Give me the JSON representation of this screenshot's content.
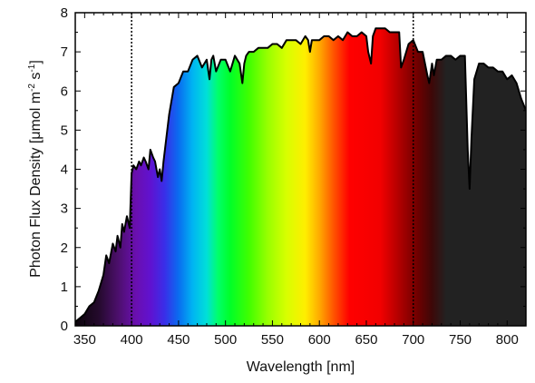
{
  "chart_data": {
    "type": "area",
    "title": "",
    "xlabel": "Wavelength [nm]",
    "ylabel": {
      "prefix": "Photon Flux Density [μmol m",
      "sup1": "-2",
      "mid": " s",
      "sup2": "-1",
      "suffix": "]"
    },
    "xlim": [
      340,
      820
    ],
    "ylim": [
      0,
      8
    ],
    "x_ticks": [
      350,
      400,
      450,
      500,
      550,
      600,
      650,
      700,
      750,
      800
    ],
    "y_ticks": [
      0,
      1,
      2,
      3,
      4,
      5,
      6,
      7,
      8
    ],
    "x_tick_labels": [
      "350",
      "400",
      "450",
      "500",
      "550",
      "600",
      "650",
      "700",
      "750",
      "800"
    ],
    "y_tick_labels": [
      "0",
      "1",
      "2",
      "3",
      "4",
      "5",
      "6",
      "7",
      "8"
    ],
    "reference_lines_x": [
      400,
      700
    ],
    "series": [
      {
        "x": [
          340,
          345,
          350,
          355,
          360,
          365,
          370,
          373,
          376,
          380,
          383,
          385,
          388,
          390,
          392,
          395,
          398,
          400,
          402,
          405,
          408,
          410,
          413,
          415,
          418,
          420,
          423,
          425,
          428,
          430,
          432,
          434,
          436,
          440,
          445,
          450,
          455,
          460,
          465,
          470,
          475,
          480,
          483,
          485,
          487,
          490,
          495,
          500,
          505,
          510,
          515,
          518,
          520,
          522,
          525,
          530,
          535,
          540,
          545,
          550,
          555,
          560,
          565,
          570,
          575,
          580,
          585,
          588,
          590,
          592,
          595,
          600,
          605,
          610,
          615,
          620,
          625,
          630,
          635,
          640,
          645,
          650,
          652,
          655,
          657,
          660,
          665,
          670,
          675,
          680,
          685,
          687,
          690,
          695,
          700,
          705,
          710,
          715,
          717,
          720,
          722,
          725,
          730,
          735,
          740,
          745,
          750,
          755,
          758,
          760,
          762,
          765,
          770,
          775,
          780,
          785,
          790,
          795,
          800,
          805,
          810,
          815,
          820
        ],
        "y": [
          0.1,
          0.2,
          0.3,
          0.5,
          0.6,
          0.9,
          1.3,
          1.8,
          1.6,
          2.1,
          1.9,
          2.3,
          2.0,
          2.6,
          2.4,
          2.8,
          2.5,
          3.9,
          4.1,
          4.0,
          4.2,
          4.1,
          4.3,
          4.2,
          4.0,
          4.5,
          4.3,
          4.2,
          3.8,
          4.0,
          3.7,
          4.2,
          4.6,
          5.4,
          6.1,
          6.2,
          6.5,
          6.5,
          6.8,
          6.9,
          6.6,
          6.8,
          6.3,
          6.8,
          6.9,
          6.5,
          6.8,
          6.8,
          6.5,
          6.9,
          6.7,
          6.2,
          6.7,
          6.9,
          7.0,
          7.0,
          7.1,
          7.1,
          7.1,
          7.2,
          7.2,
          7.1,
          7.3,
          7.3,
          7.3,
          7.2,
          7.4,
          7.3,
          7.0,
          7.3,
          7.3,
          7.3,
          7.4,
          7.4,
          7.3,
          7.4,
          7.3,
          7.5,
          7.4,
          7.4,
          7.5,
          7.4,
          7.0,
          6.7,
          7.4,
          7.6,
          7.6,
          7.6,
          7.5,
          7.5,
          7.5,
          6.6,
          6.8,
          7.2,
          7.3,
          7.0,
          7.0,
          6.4,
          6.2,
          6.7,
          6.4,
          6.8,
          6.8,
          6.9,
          6.9,
          6.8,
          6.9,
          6.9,
          4.5,
          3.5,
          4.8,
          6.3,
          6.7,
          6.7,
          6.6,
          6.6,
          6.5,
          6.5,
          6.3,
          6.4,
          6.2,
          5.8,
          5.5
        ]
      }
    ],
    "colors": {
      "line": "#000000",
      "reference_line": "#000000",
      "infrared_fill": "#222222",
      "spectrum_stops": [
        {
          "wl": 340,
          "color": "#0a030a"
        },
        {
          "wl": 365,
          "color": "#240a2c"
        },
        {
          "wl": 385,
          "color": "#4b0f6a"
        },
        {
          "wl": 405,
          "color": "#6a0fb0"
        },
        {
          "wl": 420,
          "color": "#6012d0"
        },
        {
          "wl": 435,
          "color": "#3a2ee8"
        },
        {
          "wl": 450,
          "color": "#0a6cf0"
        },
        {
          "wl": 465,
          "color": "#00b4f2"
        },
        {
          "wl": 480,
          "color": "#00e0d8"
        },
        {
          "wl": 492,
          "color": "#00ff6a"
        },
        {
          "wl": 505,
          "color": "#00ff28"
        },
        {
          "wl": 525,
          "color": "#40ff00"
        },
        {
          "wl": 545,
          "color": "#98ff00"
        },
        {
          "wl": 565,
          "color": "#d8ff00"
        },
        {
          "wl": 585,
          "color": "#ffee00"
        },
        {
          "wl": 600,
          "color": "#ffaa00"
        },
        {
          "wl": 615,
          "color": "#ff5500"
        },
        {
          "wl": 632,
          "color": "#ff0000"
        },
        {
          "wl": 665,
          "color": "#f20000"
        },
        {
          "wl": 685,
          "color": "#b00000"
        },
        {
          "wl": 705,
          "color": "#6e0000"
        },
        {
          "wl": 720,
          "color": "#3d0808"
        },
        {
          "wl": 735,
          "color": "#222222"
        },
        {
          "wl": 820,
          "color": "#222222"
        }
      ]
    }
  }
}
